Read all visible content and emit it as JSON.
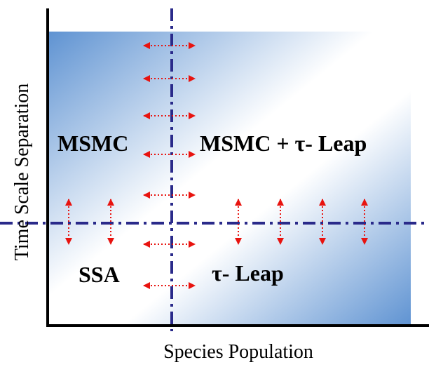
{
  "axes": {
    "y_label": "Time Scale Separation",
    "x_label": "Species Population"
  },
  "regions": [
    {
      "label": "MSMC"
    },
    {
      "label": "MSMC + τ- Leap"
    },
    {
      "label": "SSA"
    },
    {
      "label": "τ- Leap"
    }
  ]
}
